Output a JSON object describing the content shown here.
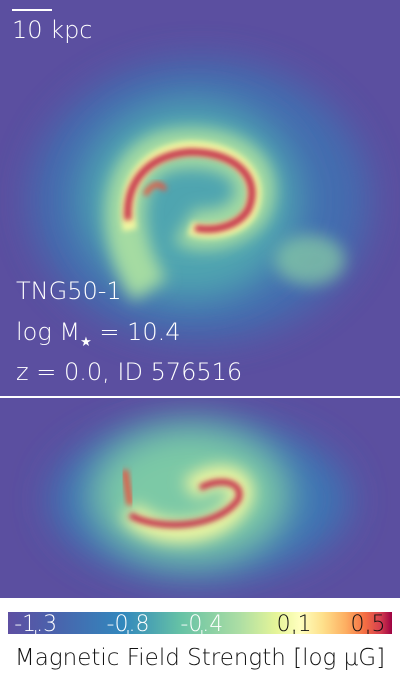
{
  "scale_bar": {
    "label": "10 kpc"
  },
  "info": {
    "simulation": "TNG50-1",
    "mass": {
      "prefix": "log M",
      "subscript": "★",
      "suffix": " = 10.4"
    },
    "snapshot": "z = 0.0, ID 576516"
  },
  "colorbar": {
    "label": "Magnetic Field Strength [log μG]",
    "vlim": [
      -1.45,
      0.63
    ],
    "ticks": [
      -1.3,
      -0.8,
      -0.4,
      0.1,
      0.5
    ]
  }
}
